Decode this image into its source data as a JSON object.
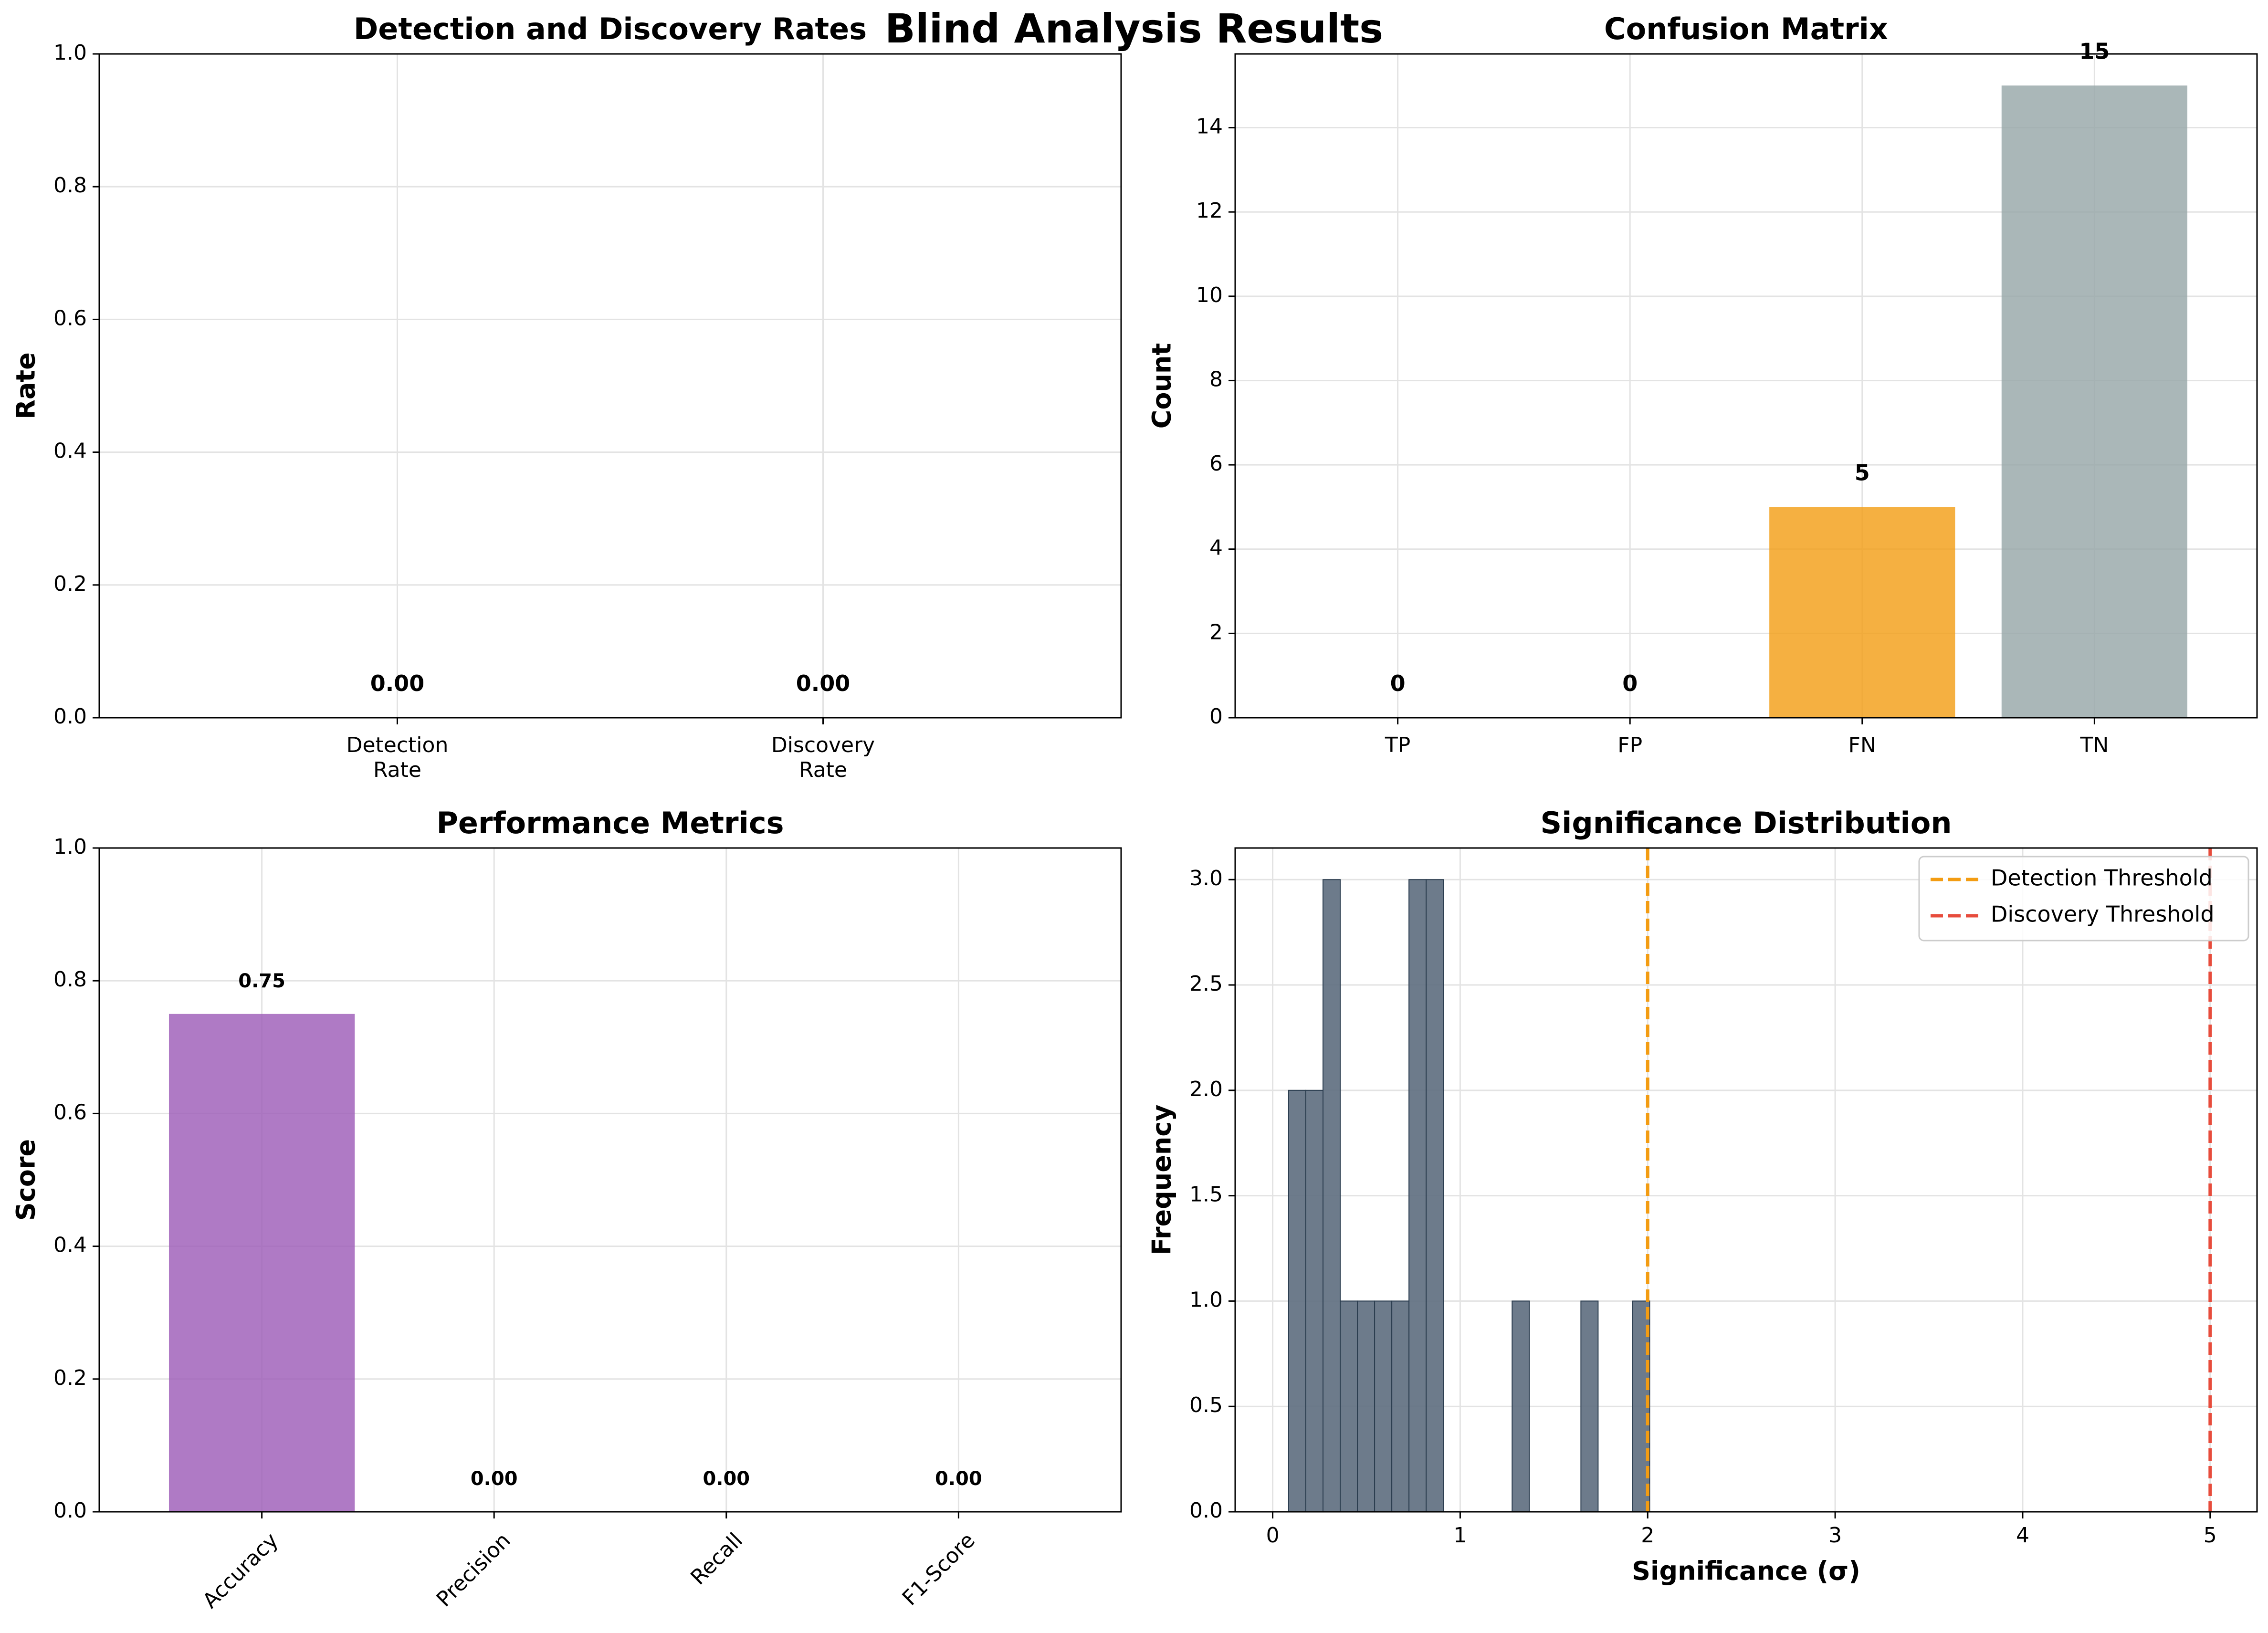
{
  "figure": {
    "title": "Blind Analysis Results"
  },
  "chart_data": [
    {
      "type": "bar",
      "title": "Detection and Discovery Rates",
      "xlabel": "",
      "ylabel": "Rate",
      "categories": [
        "Detection\nRate",
        "Discovery\nRate"
      ],
      "values": [
        0.0,
        0.0
      ],
      "value_labels": [
        "0.00",
        "0.00"
      ],
      "ylim": [
        0,
        1.0
      ],
      "yticks": [
        "0.0",
        "0.2",
        "0.4",
        "0.6",
        "0.8",
        "1.0"
      ],
      "colors": [
        "#f39c12",
        "#e74c3c"
      ],
      "grid": true
    },
    {
      "type": "bar",
      "title": "Confusion Matrix",
      "xlabel": "",
      "ylabel": "Count",
      "categories": [
        "TP",
        "FP",
        "FN",
        "TN"
      ],
      "values": [
        0,
        0,
        5,
        15
      ],
      "value_labels": [
        "0",
        "0",
        "5",
        "15"
      ],
      "ylim": [
        0,
        15.75
      ],
      "yticks": [
        "0",
        "2",
        "4",
        "6",
        "8",
        "10",
        "12",
        "14"
      ],
      "colors": [
        "#27ae60",
        "#e74c3c",
        "#f39c12",
        "#95a5a6"
      ],
      "grid": true
    },
    {
      "type": "bar",
      "title": "Performance Metrics",
      "xlabel": "",
      "ylabel": "Score",
      "categories": [
        "Accuracy",
        "Precision",
        "Recall",
        "F1-Score"
      ],
      "values": [
        0.75,
        0.0,
        0.0,
        0.0
      ],
      "value_labels": [
        "0.75",
        "0.00",
        "0.00",
        "0.00"
      ],
      "ylim": [
        0,
        1.0
      ],
      "yticks": [
        "0.0",
        "0.2",
        "0.4",
        "0.6",
        "0.8",
        "1.0"
      ],
      "colors": [
        "#9b59b6",
        "#3498db",
        "#1abc9c",
        "#e67e22"
      ],
      "grid": true
    },
    {
      "type": "histogram",
      "title": "Significance Distribution",
      "xlabel": "Significance (σ)",
      "ylabel": "Frequency",
      "bin_width": 0.0917,
      "bin_start": 0.085,
      "counts": [
        2,
        2,
        3,
        1,
        1,
        1,
        1,
        3,
        3,
        0,
        0,
        0,
        0,
        1,
        0,
        0,
        0,
        1,
        0,
        0,
        1
      ],
      "xlim": [
        -0.2,
        5.25
      ],
      "ylim": [
        0,
        3.15
      ],
      "xticks": [
        "0",
        "1",
        "2",
        "3",
        "4",
        "5"
      ],
      "yticks": [
        "0.0",
        "0.5",
        "1.0",
        "1.5",
        "2.0",
        "2.5",
        "3.0"
      ],
      "bar_color": "#5d6d7e",
      "thresholds": [
        {
          "name": "Detection Threshold",
          "value": 2,
          "color": "#f39c12"
        },
        {
          "name": "Discovery Threshold",
          "value": 5,
          "color": "#e74c3c"
        }
      ],
      "legend_position": "top-right",
      "grid": true
    }
  ]
}
